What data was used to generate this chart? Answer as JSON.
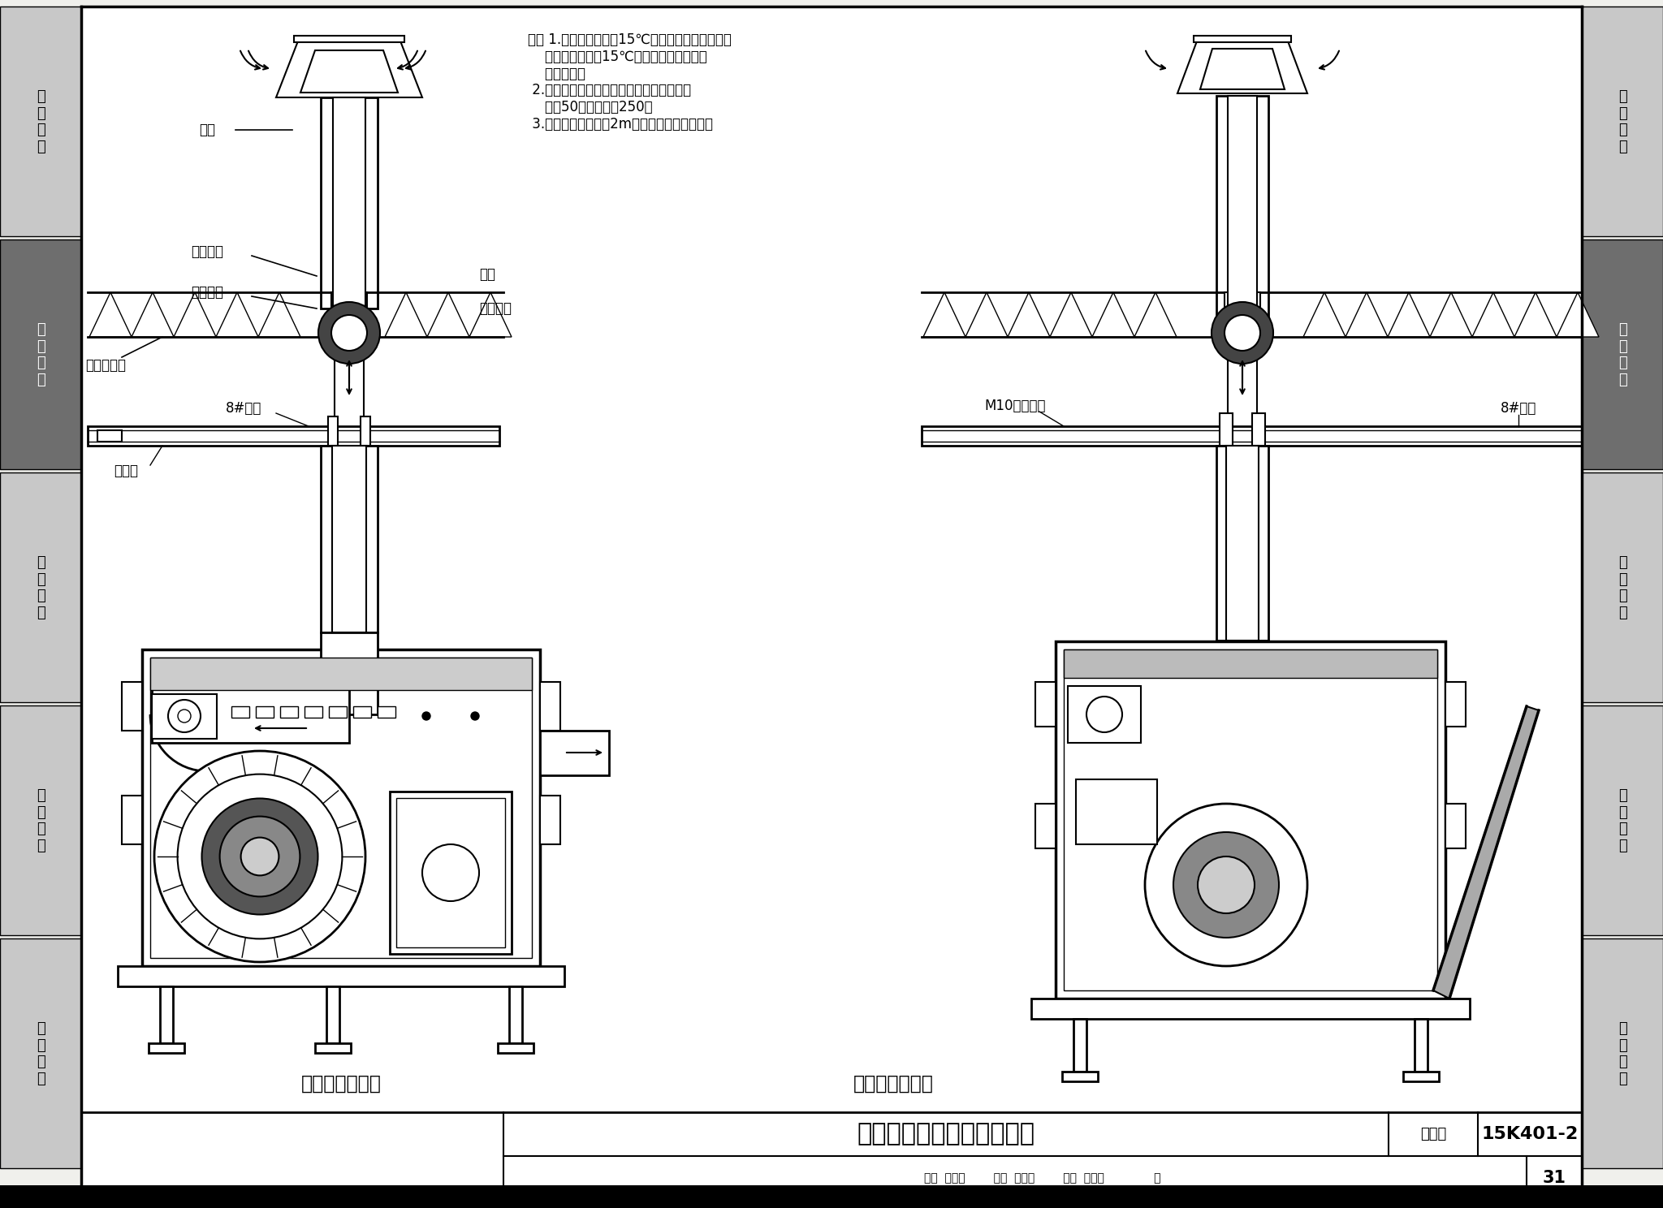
{
  "page_bg": "#f0f0ec",
  "left_tabs": [
    "设\n计\n说\n明",
    "施\n工\n安\n装",
    "液\n化\n气\n站",
    "电\n气\n控\n制",
    "工\n程\n实\n例"
  ],
  "right_tabs": [
    "设\n计\n说\n明",
    "施\n工\n安\n装",
    "液\n化\n气\n站",
    "电\n气\n控\n制",
    "工\n程\n实\n例"
  ],
  "active_tab_idx": 1,
  "title_main": "低温辐射管燃烧器室内安装",
  "fig_num_label": "图集号",
  "fig_num_value": "15K401-2",
  "page_label": "页",
  "page_num": "31",
  "sub_title1": "主机吊装主视图",
  "sub_title2": "主机吊装侧视图",
  "note": "注： 1.当室外温度低于15℃时采用图中方式安装；\n    当室外温度高于15℃时，排气管及进风管\n    独立安装。\n 2.烟囱采用热镇锥錢管现场焊接制作，内层\n    通径50，外层通径250。\n 3.烟囱出屋面高度为2m，顶端带双层防雨帽。",
  "label_yancong": "烟囱",
  "label_dingzhi": "定制盖片",
  "label_wumian_gaiban": "屋面盖板",
  "label_fang_gang": "厂房锂结构",
  "label_8_slot": "8#槽锂",
  "label_laohu": "老虎夹",
  "label_wumian": "屋面",
  "label_wumian_lin": "屋面檑条",
  "label_m10": "M10加固螺栓",
  "label_8_slot_side": "8#槽锂",
  "bottom_text": "审核|张蔟东|  校对|蔡存占|  设计|管冬敏|页"
}
